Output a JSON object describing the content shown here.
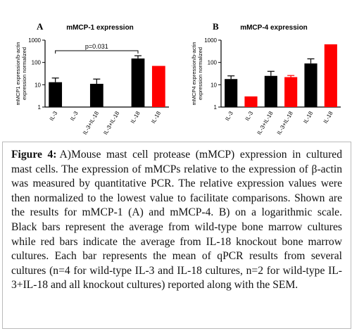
{
  "chart_data": [
    {
      "type": "bar",
      "panel_label": "A",
      "title": "mMCP-1 expression",
      "ylabel": [
        "mMCP1 expression/b-actin",
        "expression normalized"
      ],
      "categories": [
        "IL-3",
        "IL-3",
        "IL-3+IL-18",
        "IL-3+IL-18",
        "IL-18",
        "IL-18"
      ],
      "values": [
        13,
        null,
        11,
        null,
        150,
        70
      ],
      "errors": [
        7,
        null,
        7,
        null,
        50,
        null
      ],
      "colors": [
        "#000000",
        "#ff0000",
        "#000000",
        "#ff0000",
        "#000000",
        "#ff0000"
      ],
      "log_scale": true,
      "ylim": [
        1,
        1000
      ],
      "yticks": [
        1,
        10,
        100,
        1000
      ],
      "annotation": "p=0.031"
    },
    {
      "type": "bar",
      "panel_label": "B",
      "title": "mMCP-4 expression",
      "ylabel": [
        "mMCP4 expression/b-actin",
        "expression normalized"
      ],
      "categories": [
        "IL-3",
        "IL-3",
        "IL-3+IL-18",
        "IL-3+IL-18",
        "IL-18",
        "IL-18"
      ],
      "values": [
        18,
        3,
        25,
        22,
        90,
        650
      ],
      "errors": [
        7,
        null,
        15,
        4,
        55,
        null
      ],
      "colors": [
        "#000000",
        "#ff0000",
        "#000000",
        "#ff0000",
        "#000000",
        "#ff0000"
      ],
      "log_scale": true,
      "ylim": [
        1,
        1000
      ],
      "yticks": [
        1,
        10,
        100,
        1000
      ]
    }
  ],
  "caption": {
    "label": "Figure 4:",
    "text": "A)Mouse mast cell protease (mMCP) expression in cultured mast cells. The expression of mMCPs relative to the expression of β-actin was measured by quantitative PCR. The relative expression values were then normalized to the lowest value to facilitate comparisons. Shown are the results for mMCP-1 (A) and mMCP-4. B) on a logarithmic scale. Black bars represent the average from wild-type bone marrow cultures while red bars indicate the average from IL-18 knockout bone marrow cultures. Each bar represents the mean of qPCR results from several cultures (n=4 for wild-type IL-3 and IL-18 cultures, n=2 for wild-type IL-3+IL-18 and all knockout cultures) reported along with the SEM."
  }
}
